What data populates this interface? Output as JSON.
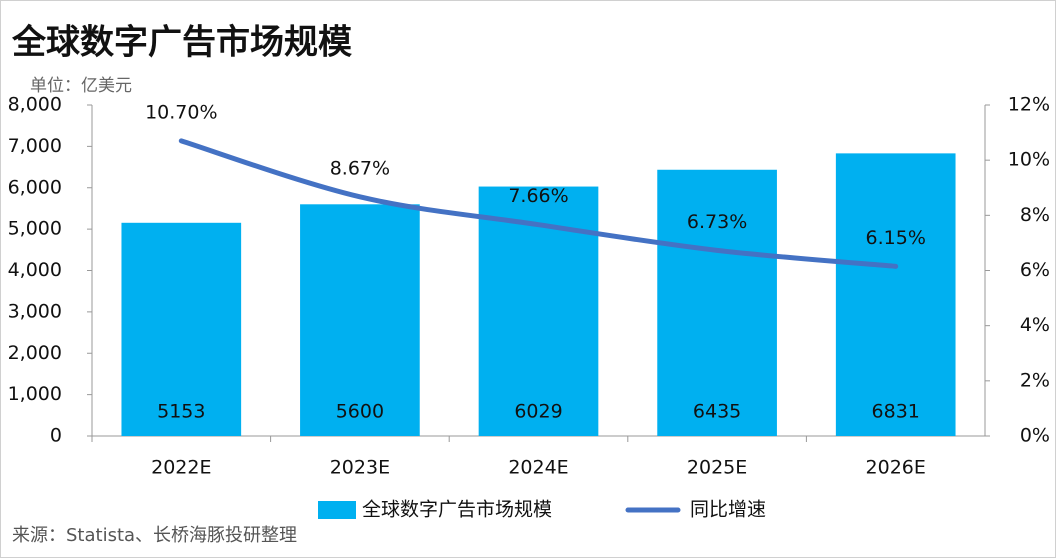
{
  "chart_data": {
    "type": "bar",
    "title": "全球数字广告市场规模",
    "subtitle": "单位：亿美元",
    "source": "来源：Statista、长桥海豚投研整理",
    "categories": [
      "2022E",
      "2023E",
      "2024E",
      "2025E",
      "2026E"
    ],
    "series": [
      {
        "name": "全球数字广告市场规模",
        "type": "bar",
        "color": "#00b0f0",
        "values": [
          5153,
          5600,
          6029,
          6435,
          6831
        ]
      },
      {
        "name": "同比增速",
        "type": "line",
        "axis": "y2",
        "color": "#4472c4",
        "values": [
          10.7,
          8.67,
          7.66,
          6.73,
          6.15
        ],
        "value_labels": [
          "10.70%",
          "8.67%",
          "7.66%",
          "6.73%",
          "6.15%"
        ]
      }
    ],
    "ylim": [
      0,
      8000
    ],
    "yticks": [
      0,
      {
        "value": 1000,
        "label": "1,000"
      },
      {
        "value": 2000,
        "label": "2,000"
      },
      {
        "value": 3000,
        "label": "3,000"
      },
      {
        "value": 4000,
        "label": "4,000"
      },
      {
        "value": 5000,
        "label": "5,000"
      },
      {
        "value": 6000,
        "label": "6,000"
      },
      {
        "value": 7000,
        "label": "7,000"
      },
      {
        "value": 8000,
        "label": "8,000"
      }
    ],
    "y2lim": [
      0,
      12
    ],
    "y2ticks": [
      {
        "value": 0,
        "label": "0%"
      },
      {
        "value": 2,
        "label": "2%"
      },
      {
        "value": 4,
        "label": "4%"
      },
      {
        "value": 6,
        "label": "6%"
      },
      {
        "value": 8,
        "label": "8%"
      },
      {
        "value": 10,
        "label": "10%"
      },
      {
        "value": 12,
        "label": "12%"
      }
    ],
    "grid": false,
    "legend": "bottom"
  }
}
